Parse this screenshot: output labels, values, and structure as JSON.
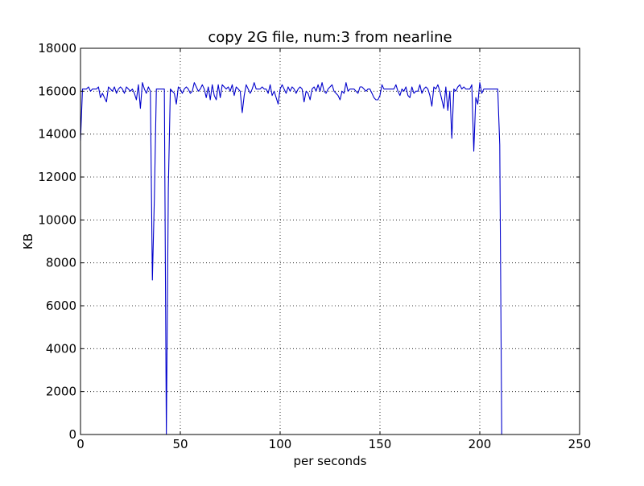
{
  "chart_data": {
    "type": "line",
    "title": "copy 2G file, num:3 from nearline",
    "xlabel": "per seconds",
    "ylabel": "KB",
    "xlim": [
      0,
      250
    ],
    "ylim": [
      0,
      18000
    ],
    "xticks": [
      0,
      50,
      100,
      150,
      200,
      250
    ],
    "yticks": [
      0,
      2000,
      4000,
      6000,
      8000,
      10000,
      12000,
      14000,
      16000,
      18000
    ],
    "grid": true,
    "line_color": "#0000cc",
    "series": [
      {
        "x": [
          0,
          1,
          2,
          3,
          4,
          5,
          6,
          7,
          8,
          9,
          10,
          11,
          12,
          13,
          14,
          15,
          16,
          17,
          18,
          19,
          20,
          21,
          22,
          23,
          24,
          25,
          26,
          27,
          28,
          29,
          30,
          31,
          32,
          33,
          34,
          35,
          36,
          37,
          38,
          39,
          40,
          41,
          42,
          43,
          44,
          45,
          46,
          47,
          48,
          49,
          50,
          51,
          52,
          53,
          54,
          55,
          56,
          57,
          58,
          59,
          60,
          61,
          62,
          63,
          64,
          65,
          66,
          67,
          68,
          69,
          70,
          71,
          72,
          73,
          74,
          75,
          76,
          77,
          78,
          79,
          80,
          81,
          82,
          83,
          84,
          85,
          86,
          87,
          88,
          89,
          90,
          91,
          92,
          93,
          94,
          95,
          96,
          97,
          98,
          99,
          100,
          101,
          102,
          103,
          104,
          105,
          106,
          107,
          108,
          109,
          110,
          111,
          112,
          113,
          114,
          115,
          116,
          117,
          118,
          119,
          120,
          121,
          122,
          123,
          124,
          125,
          126,
          127,
          128,
          129,
          130,
          131,
          132,
          133,
          134,
          135,
          136,
          137,
          138,
          139,
          140,
          141,
          142,
          143,
          144,
          145,
          146,
          147,
          148,
          149,
          150,
          151,
          152,
          153,
          154,
          155,
          156,
          157,
          158,
          159,
          160,
          161,
          162,
          163,
          164,
          165,
          166,
          167,
          168,
          169,
          170,
          171,
          172,
          173,
          174,
          175,
          176,
          177,
          178,
          179,
          180,
          181,
          182,
          183,
          184,
          185,
          186,
          187,
          188,
          189,
          190,
          191,
          192,
          193,
          194,
          195,
          196,
          197,
          198,
          199,
          200,
          201,
          202,
          203,
          204,
          205,
          206,
          207,
          208,
          209,
          210,
          211
        ],
        "values": [
          13700,
          16100,
          16100,
          16100,
          16200,
          16000,
          16100,
          16100,
          16100,
          16200,
          15700,
          15900,
          15700,
          15500,
          16200,
          16100,
          16000,
          16200,
          15900,
          16100,
          16200,
          16100,
          15900,
          16200,
          16100,
          16000,
          16100,
          15900,
          15600,
          16300,
          15200,
          16400,
          16100,
          15900,
          16200,
          16000,
          7200,
          11000,
          16100,
          16100,
          16100,
          16100,
          16100,
          0,
          11500,
          16100,
          16000,
          15900,
          15400,
          16200,
          16100,
          15900,
          16100,
          16200,
          16100,
          15900,
          16000,
          16400,
          16200,
          16000,
          16100,
          16300,
          16100,
          15700,
          16200,
          15600,
          16300,
          15800,
          15600,
          16300,
          15700,
          16300,
          16200,
          16100,
          16200,
          16000,
          16300,
          15800,
          16200,
          16100,
          16000,
          15000,
          15800,
          16300,
          16100,
          15900,
          16100,
          16400,
          16100,
          16100,
          16100,
          16200,
          16100,
          16100,
          15900,
          16300,
          15800,
          16000,
          15700,
          15400,
          16100,
          16300,
          16100,
          15900,
          16200,
          16000,
          16200,
          16100,
          15900,
          16100,
          16200,
          16100,
          15500,
          16000,
          15900,
          15600,
          16100,
          16200,
          16000,
          16300,
          16000,
          16400,
          16000,
          15900,
          16100,
          16200,
          16300,
          16000,
          15900,
          15800,
          15600,
          16000,
          15900,
          16400,
          16000,
          16100,
          16100,
          16100,
          16000,
          15900,
          16200,
          16200,
          16100,
          16000,
          16100,
          16100,
          15900,
          15700,
          15600,
          15600,
          15800,
          16300,
          16100,
          16100,
          16100,
          16100,
          16100,
          16100,
          16300,
          16000,
          15800,
          16100,
          16000,
          16200,
          15800,
          15700,
          16200,
          15900,
          16000,
          16000,
          16300,
          15900,
          16100,
          16200,
          16100,
          15800,
          15300,
          16200,
          16100,
          16300,
          16000,
          15600,
          15200,
          16200,
          15100,
          16000,
          13800,
          16100,
          16000,
          16200,
          16300,
          16100,
          16200,
          16100,
          16100,
          16100,
          16300,
          13200,
          15700,
          15400,
          16400,
          15900,
          16100,
          16100,
          16100,
          16100,
          16100,
          16100,
          16100,
          16100,
          13500,
          0
        ]
      }
    ]
  }
}
